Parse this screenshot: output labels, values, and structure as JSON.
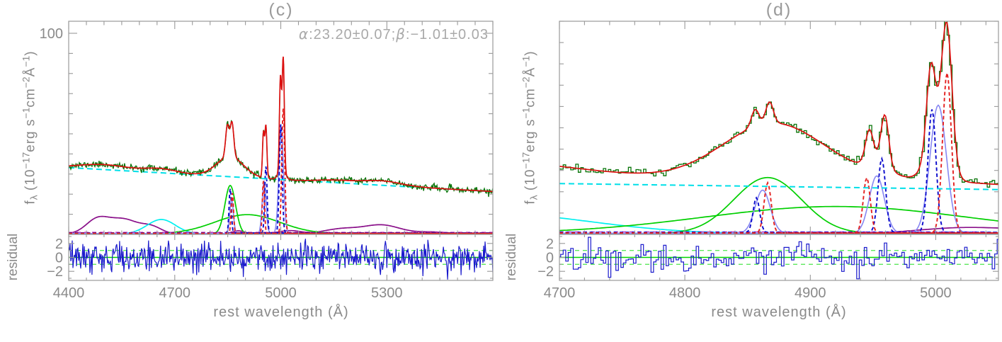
{
  "figure": {
    "labels": {
      "xlabel": "rest wavelength (Å)",
      "residual": "residual",
      "ylabel_parts": {
        "f": "f",
        "sub": "λ",
        "p1": " (10",
        "s1": "−17",
        "p2": "erg s",
        "s2": "−1",
        "p3": "cm",
        "s3": "−2",
        "p4": "Å",
        "s4": "−1",
        "p5": ")"
      }
    },
    "palette": {
      "observed_spectrum": "#077307",
      "total_model": "#dc1010",
      "powerlaw_continuum": "#00dfe8",
      "cyan_broad_component": "#00f0f0",
      "broad_gaussian": "#00cf00",
      "intermediate_wing": "#8787f2",
      "narrow_blue_dashed": "#0a0acc",
      "narrow_red_dashed": "#e42020",
      "feii_template": "#8a108a",
      "zero_level_line": "#c43ec4",
      "residual_trace": "#1a1acc",
      "residual_zero_line": "#00d400",
      "residual_sigma_line": "#5ce85c",
      "axis": "#999999",
      "text": "#8a8a8a",
      "faint_text": "#a9a9a9"
    }
  },
  "chart_data": [
    {
      "type": "line",
      "title": "(c)",
      "annotation": {
        "alpha": "α",
        "mid": ":23.20±0.07;",
        "beta": "β",
        "tail": ":−1.01±0.03"
      },
      "xlabel": "rest wavelength (Å)",
      "ylabel": "fλ (10−17erg s−1cm−2Å−1)",
      "residual_label": "residual",
      "legend": "none",
      "grid": false,
      "xlim": [
        4400,
        5600
      ],
      "ylim": [
        0,
        106
      ],
      "x_major_ticks": [
        {
          "value": 4400,
          "label": "4400"
        },
        {
          "value": 4700,
          "label": "4700"
        },
        {
          "value": 5000,
          "label": "5000"
        },
        {
          "value": 5300,
          "label": "5300"
        }
      ],
      "x_minor_step": 50,
      "y_major_ticks": [
        {
          "value": 100,
          "label": "100"
        }
      ],
      "y_minor_step": 10,
      "continuum": {
        "y_start": 33.2,
        "y_end": 21.3
      },
      "components": {
        "feii_template": [
          [
            4480,
            6.8,
            32
          ],
          [
            4555,
            7.2,
            42
          ],
          [
            4635,
            3.2,
            28
          ],
          [
            4880,
            1.5,
            18
          ],
          [
            5025,
            1.6,
            32
          ],
          [
            5170,
            2.4,
            48
          ],
          [
            5285,
            4.4,
            52
          ],
          [
            5430,
            0.9,
            45
          ]
        ],
        "cyan_broad": [
          [
            4662,
            7.2,
            40
          ]
        ],
        "broad_gaussians": [
          [
            4857,
            24,
            15
          ],
          [
            4905,
            9.5,
            92
          ]
        ],
        "intermediate_wings": [
          [
            4861,
            17,
            5
          ],
          [
            4953,
            26,
            5.5
          ],
          [
            5001,
            53,
            6.5
          ]
        ],
        "narrow_blue": [
          [
            4857,
            22,
            3.2
          ],
          [
            4958,
            33,
            3.4
          ],
          [
            5000,
            54,
            4.0
          ]
        ],
        "narrow_red": [
          [
            4863,
            20,
            3.2
          ],
          [
            4951,
            26,
            3.0
          ],
          [
            5007,
            62,
            4.2
          ]
        ]
      },
      "model_gaussians": [
        [
          4500,
          2.5,
          70
        ],
        [
          4660,
          2.0,
          45
        ],
        [
          4857,
          10,
          38
        ],
        [
          4849,
          15.5,
          5
        ],
        [
          4862,
          17,
          5
        ],
        [
          4951,
          22,
          2.6
        ],
        [
          4958,
          26,
          2.8
        ],
        [
          4999,
          45,
          2.8
        ],
        [
          5007,
          55,
          3.0
        ],
        [
          5003,
          6,
          9
        ],
        [
          5285,
          2.2,
          55
        ],
        [
          5155,
          1.2,
          50
        ]
      ],
      "zero_level": 1.0,
      "data": {
        "bin_width": 2,
        "noise_sigma": 0.8,
        "seed": 11,
        "style": "line"
      },
      "residual": {
        "ylim": [
          -3.3,
          3.3
        ],
        "ticks": [
          {
            "value": 2,
            "label": "2"
          },
          {
            "value": 0,
            "label": "0"
          },
          {
            "value": -2,
            "label": "−2"
          }
        ],
        "y_minor_step": 1,
        "sigma_lines": [
          -1,
          1
        ],
        "noise_sigma": 1.02,
        "seed": 12,
        "style": "line"
      }
    },
    {
      "type": "line",
      "title": "(d)",
      "annotation": null,
      "xlabel": "rest wavelength (Å)",
      "ylabel": "fλ (10−17erg s−1cm−2Å−1)",
      "residual_label": "residual",
      "legend": "none",
      "grid": false,
      "xlim": [
        4700,
        5050
      ],
      "ylim": [
        0,
        78
      ],
      "x_major_ticks": [
        {
          "value": 4700,
          "label": "4700"
        },
        {
          "value": 4800,
          "label": "4800"
        },
        {
          "value": 4900,
          "label": "4900"
        },
        {
          "value": 5000,
          "label": "5000"
        }
      ],
      "x_minor_step": 20,
      "y_major_ticks": [],
      "y_minor_step": 7.8,
      "continuum": {
        "y_start": 18.6,
        "y_end": 16.4
      },
      "components": {
        "feii_template": [
          [
            5020,
            1.9,
            35
          ],
          [
            5160,
            2.6,
            70
          ]
        ],
        "cyan_broad": [
          [
            4645,
            7.5,
            78
          ]
        ],
        "broad_gaussians": [
          [
            4866,
            20.5,
            27
          ],
          [
            4920,
            9.9,
            105
          ]
        ],
        "intermediate_wings": [
          [
            4862,
            15.8,
            6
          ],
          [
            4953,
            21,
            6
          ],
          [
            5002,
            46.9,
            6.5
          ]
        ],
        "narrow_blue": [
          [
            4857,
            12.7,
            2.6
          ],
          [
            4957,
            27,
            3.0
          ],
          [
            4997,
            45,
            3.2
          ]
        ],
        "narrow_red": [
          [
            4866,
            18.4,
            2.8
          ],
          [
            4945,
            20.2,
            2.8
          ],
          [
            5009,
            58.6,
            3.5
          ]
        ]
      },
      "model_gaussians": [
        [
          4645,
          7.5,
          78
        ],
        [
          4870,
          19.5,
          40
        ],
        [
          4856,
          6.2,
          3
        ],
        [
          4867.5,
          7.8,
          3
        ],
        [
          4920,
          4,
          105
        ],
        [
          4947,
          11,
          3
        ],
        [
          4959.5,
          17.5,
          3
        ],
        [
          4954,
          5,
          8
        ],
        [
          4996,
          28,
          3.4
        ],
        [
          5009,
          45,
          4.0
        ],
        [
          5002,
          19,
          8
        ]
      ],
      "zero_level": 0.9,
      "data": {
        "bin_width": 2,
        "noise_sigma": 0.8,
        "seed": 21,
        "style": "steps"
      },
      "residual": {
        "ylim": [
          -3.3,
          3.3
        ],
        "ticks": [
          {
            "value": 2,
            "label": "2"
          },
          {
            "value": 0,
            "label": "0"
          },
          {
            "value": -2,
            "label": "−2"
          }
        ],
        "y_minor_step": 1,
        "sigma_lines": [
          -1,
          1
        ],
        "noise_sigma": 0.92,
        "seed": 22,
        "style": "steps"
      }
    }
  ]
}
